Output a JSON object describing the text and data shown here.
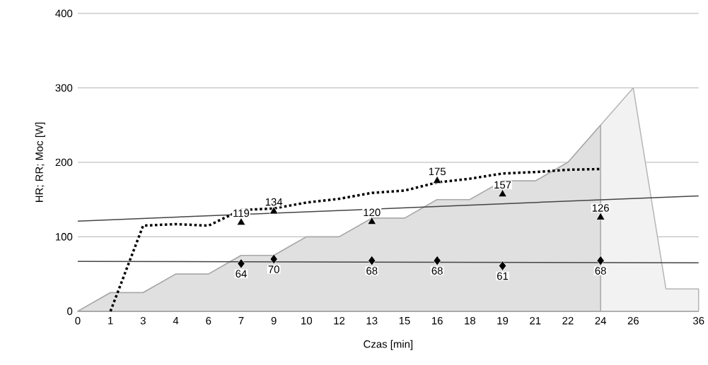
{
  "chart_data": {
    "type": "line",
    "xlabel": "Czas [min]",
    "ylabel": "HR; RR; Moc [W]",
    "categories": [
      "0",
      "1",
      "3",
      "4",
      "6",
      "7",
      "9",
      "10",
      "12",
      "13",
      "15",
      "16",
      "18",
      "19",
      "21",
      "22",
      "24",
      "26",
      null,
      "36"
    ],
    "ylim": [
      0,
      400
    ],
    "yticks": [
      0,
      100,
      200,
      300,
      400
    ],
    "grid": "y",
    "series": [
      {
        "type": "area",
        "color": "#f2f2f2",
        "values": [
          0,
          25,
          25,
          50,
          50,
          75,
          75,
          100,
          100,
          125,
          125,
          150,
          150,
          175,
          175,
          200,
          250,
          300,
          30,
          30
        ]
      },
      {
        "type": "area",
        "color": "#e0e0e0",
        "values": [
          0,
          25,
          25,
          50,
          50,
          75,
          75,
          100,
          100,
          125,
          125,
          150,
          150,
          175,
          175,
          200,
          250,
          null,
          null,
          null
        ]
      },
      {
        "color": "#444444",
        "x": [
          "0",
          "36"
        ],
        "values": [
          121,
          155
        ]
      },
      {
        "color": "#444444",
        "x": [
          "0",
          "36"
        ],
        "values": [
          67,
          65
        ]
      },
      {
        "color": "#000000",
        "line_style": "dotted",
        "values": [
          null,
          0,
          115,
          117,
          115,
          136,
          138,
          146,
          151,
          159,
          162,
          173,
          178,
          185,
          187,
          190,
          191,
          null,
          null,
          null
        ]
      },
      {
        "type": "scatter",
        "color": "#000000",
        "marker": "triangle",
        "values": [
          null,
          null,
          null,
          null,
          null,
          119,
          134,
          null,
          null,
          120,
          null,
          175,
          null,
          157,
          null,
          null,
          126,
          null,
          null,
          null
        ],
        "value_labels": [
          null,
          null,
          null,
          null,
          null,
          "119",
          "134",
          null,
          null,
          "120",
          null,
          "175",
          null,
          "157",
          null,
          null,
          "126",
          null,
          null,
          null
        ]
      },
      {
        "type": "scatter",
        "color": "#000000",
        "marker": "diamond",
        "values": [
          null,
          null,
          null,
          null,
          null,
          64,
          70,
          null,
          null,
          68,
          null,
          68,
          null,
          61,
          null,
          null,
          68,
          null,
          null,
          null
        ],
        "value_labels": [
          null,
          null,
          null,
          null,
          null,
          "64",
          "70",
          null,
          null,
          "68",
          null,
          "68",
          null,
          "61",
          null,
          null,
          "68",
          null,
          null,
          null
        ]
      }
    ]
  }
}
